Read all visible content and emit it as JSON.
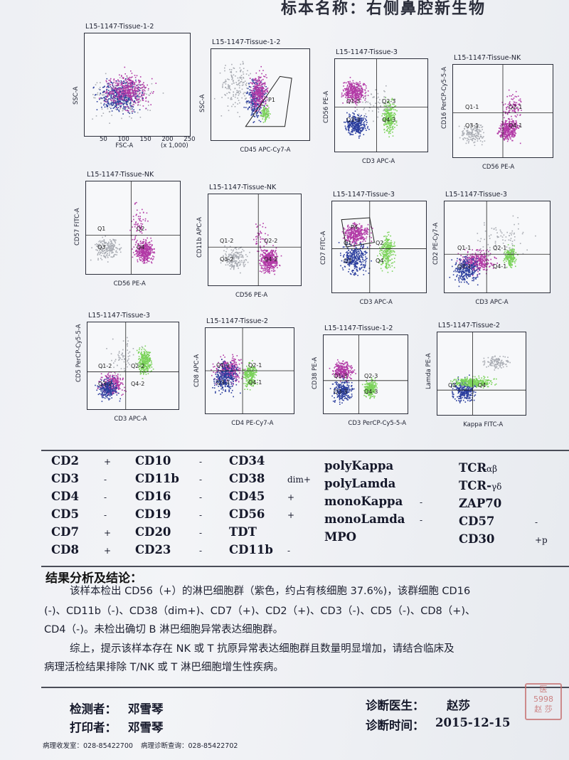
{
  "header": {
    "title": "标本名称：右侧鼻腔新生物"
  },
  "plots": [
    {
      "title": "L15-1147-Tissue-1-2",
      "xlabel": "FSC-A",
      "ylabel": "SSC-A",
      "quads": []
    },
    {
      "title": "L15-1147-Tissue-1-2",
      "xlabel": "CD45 APC-Cy7-A",
      "ylabel": "SSC-A",
      "quads": [
        "P1"
      ]
    },
    {
      "title": "L15-1147-Tissue-3",
      "xlabel": "CD3 APC-A",
      "ylabel": "CD56 PE-A",
      "quads": [
        "Q1-3",
        "Q2-3",
        "Q3-3",
        "Q4-3"
      ]
    },
    {
      "title": "L15-1147-Tissue-NK",
      "xlabel": "CD56 PE-A",
      "ylabel": "CD16 PerCP-Cy5-5-A",
      "quads": [
        "Q1-1",
        "Q2-1",
        "Q3-1",
        "Q4-1"
      ]
    },
    {
      "title": "L15-1147-Tissue-NK",
      "xlabel": "CD56 PE-A",
      "ylabel": "CD57 FITC-A",
      "quads": [
        "Q1",
        "Q2",
        "Q3",
        "Q4"
      ]
    },
    {
      "title": "L15-1147-Tissue-NK",
      "xlabel": "CD56 PE-A",
      "ylabel": "CD11b APC-A",
      "quads": [
        "Q1-2",
        "Q2-2",
        "Q3-2",
        "Q4-2"
      ]
    },
    {
      "title": "L15-1147-Tissue-3",
      "xlabel": "CD3 APC-A",
      "ylabel": "CD7 FITC-A",
      "quads": [
        "Q1",
        "Q2",
        "Q3",
        "Q4",
        "P4"
      ]
    },
    {
      "title": "L15-1147-Tissue-3",
      "xlabel": "CD3 APC-A",
      "ylabel": "CD2 PE-Cy7-A",
      "quads": [
        "Q1-1",
        "Q2-1",
        "Q3-1",
        "Q4-1"
      ]
    },
    {
      "title": "L15-1147-Tissue-3",
      "xlabel": "CD3 APC-A",
      "ylabel": "CD5 PerCP-Cy5-5-A",
      "quads": [
        "Q1-2",
        "Q2-2",
        "Q3-2",
        "Q4-2"
      ]
    },
    {
      "title": "L15-1147-Tissue-2",
      "xlabel": "CD4 PE-Cy7-A",
      "ylabel": "CD8 APC-A",
      "quads": [
        "Q1-1",
        "Q2-1",
        "Q3-1",
        "Q4-1"
      ]
    },
    {
      "title": "L15-1147-Tissue-1-2",
      "xlabel": "CD3 PerCP-Cy5-5-A",
      "ylabel": "CD38 PE-A",
      "quads": [
        "Q1-3",
        "Q2-3",
        "Q3-3",
        "Q4-3"
      ]
    },
    {
      "title": "L15-1147-Tissue-2",
      "xlabel": "Kappa FITC-A",
      "ylabel": "Lamda PE-A",
      "quads": [
        "Q3",
        "Q4"
      ]
    }
  ],
  "plot_axis": {
    "fsc_ticks": [
      "50",
      "100",
      "150",
      "200",
      "250"
    ],
    "x1000": "(x 1,000)",
    "dot_colors": {
      "nk": "#b23aa6",
      "t": "#7bd35a",
      "b": "#2c3f9e",
      "other": "#a9acb3"
    }
  },
  "markers": {
    "col1": [
      {
        "name": "CD2",
        "value": "+"
      },
      {
        "name": "CD3",
        "value": "-"
      },
      {
        "name": "CD4",
        "value": "-"
      },
      {
        "name": "CD5",
        "value": "-"
      },
      {
        "name": "CD7",
        "value": "+"
      },
      {
        "name": "CD8",
        "value": "+"
      }
    ],
    "col2": [
      {
        "name": "CD10",
        "value": "-"
      },
      {
        "name": "CD11b",
        "value": "-"
      },
      {
        "name": "CD16",
        "value": "-"
      },
      {
        "name": "CD19",
        "value": "-"
      },
      {
        "name": "CD20",
        "value": "-"
      },
      {
        "name": "CD23",
        "value": "-"
      }
    ],
    "col3": [
      {
        "name": "CD34",
        "value": ""
      },
      {
        "name": "CD38",
        "value": "dim+"
      },
      {
        "name": "CD45",
        "value": "+"
      },
      {
        "name": "CD56",
        "value": "+"
      },
      {
        "name": "TDT",
        "value": ""
      },
      {
        "name": "CD11b",
        "value": "-"
      }
    ],
    "col4": [
      {
        "name": "polyKappa",
        "value": ""
      },
      {
        "name": "polyLamda",
        "value": ""
      },
      {
        "name": "monoKappa",
        "value": "-"
      },
      {
        "name": "monoLamda",
        "value": "-"
      },
      {
        "name": "MPO",
        "value": ""
      }
    ],
    "col5": [
      {
        "name": "TCR",
        "sub": "-αβ",
        "value": ""
      },
      {
        "name": "TCR-",
        "sub": "γδ",
        "value": ""
      },
      {
        "name": "ZAP70",
        "value": ""
      },
      {
        "name": "CD57",
        "value": "-"
      },
      {
        "name": "CD30",
        "value": "+p"
      }
    ]
  },
  "conclusion": {
    "heading": "结果分析及结论：",
    "para1_line1": "该样本检出 CD56（+）的淋巴细胞群（紫色，约占有核细胞 37.6%)，该群细胞 CD16",
    "para1_line2": "(-)、CD11b（-)、CD38（dim+)、CD7（+)、CD2（+)、CD3（-)、CD5（-)、CD8（+)、",
    "para1_line3": "CD4（-)。未检出确切 B 淋巴细胞异常表达细胞群。",
    "para2_line1": "综上，提示该样本存在 NK 或 T 抗原异常表达细胞群且数量明显增加，请结合临床及",
    "para2_line2": "病理活检结果排除 T/NK 或 T 淋巴细胞增生性疾病。"
  },
  "signatures": {
    "tester_label": "检测者：",
    "tester": "邓雪琴",
    "printer_label": "打印者：",
    "printer": "邓雪琴",
    "doctor_label": "诊断医生：",
    "doctor": "赵莎",
    "date_label": "诊断时间：",
    "date": "2015-12-15"
  },
  "stamp": {
    "line1": "医",
    "line2": "5998",
    "line3": "赵 莎"
  },
  "footer": {
    "reception": "病理收发室：028-85422700",
    "query": "病理诊断查询：028-85422702"
  }
}
